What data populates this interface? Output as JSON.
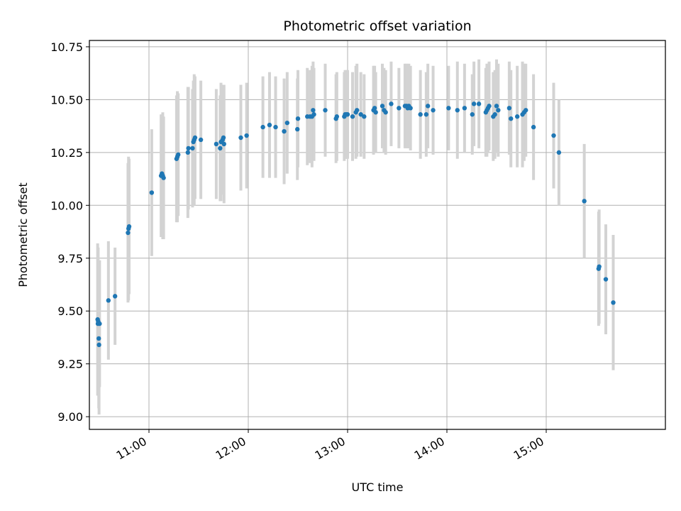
{
  "chart_data": {
    "type": "scatter",
    "title": "Photometric offset variation",
    "xlabel": "UTC time",
    "ylabel": "Photometric offset",
    "x_format": "HH:MM",
    "xlim": [
      "10:24",
      "16:12"
    ],
    "ylim": [
      8.94,
      10.78
    ],
    "x_ticks": [
      "11:00",
      "12:00",
      "13:00",
      "14:00",
      "15:00"
    ],
    "y_ticks": [
      9.0,
      9.25,
      9.5,
      9.75,
      10.0,
      10.25,
      10.5,
      10.75
    ],
    "y_tick_labels": [
      "9.00",
      "9.25",
      "9.50",
      "9.75",
      "10.00",
      "10.25",
      "10.50",
      "10.75"
    ],
    "grid": true,
    "colors": {
      "point": "#1f77b4",
      "errorbar": "#d3d3d3",
      "grid": "#b0b0b0"
    },
    "points": [
      {
        "x": "10:29:00",
        "y": 9.46,
        "err": 0.36
      },
      {
        "x": "10:29:10",
        "y": 9.44,
        "err": 0.34
      },
      {
        "x": "10:29:20",
        "y": 9.45,
        "err": 0.35
      },
      {
        "x": "10:29:40",
        "y": 9.37,
        "err": 0.33
      },
      {
        "x": "10:29:50",
        "y": 9.34,
        "err": 0.33
      },
      {
        "x": "10:30:10",
        "y": 9.44,
        "err": 0.3
      },
      {
        "x": "10:35:30",
        "y": 9.55,
        "err": 0.28
      },
      {
        "x": "10:39:30",
        "y": 9.57,
        "err": 0.23
      },
      {
        "x": "10:47:20",
        "y": 9.87,
        "err": 0.33
      },
      {
        "x": "10:47:40",
        "y": 9.89,
        "err": 0.34
      },
      {
        "x": "10:48:00",
        "y": 9.9,
        "err": 0.32
      },
      {
        "x": "11:01:40",
        "y": 10.06,
        "err": 0.3
      },
      {
        "x": "11:07:20",
        "y": 10.14,
        "err": 0.29
      },
      {
        "x": "11:07:50",
        "y": 10.15,
        "err": 0.28
      },
      {
        "x": "11:08:20",
        "y": 10.14,
        "err": 0.3
      },
      {
        "x": "11:08:50",
        "y": 10.13,
        "err": 0.29
      },
      {
        "x": "11:16:40",
        "y": 10.22,
        "err": 0.3
      },
      {
        "x": "11:17:10",
        "y": 10.23,
        "err": 0.31
      },
      {
        "x": "11:17:40",
        "y": 10.24,
        "err": 0.29
      },
      {
        "x": "11:23:30",
        "y": 10.25,
        "err": 0.31
      },
      {
        "x": "11:23:50",
        "y": 10.27,
        "err": 0.29
      },
      {
        "x": "11:26:20",
        "y": 10.27,
        "err": 0.28
      },
      {
        "x": "11:26:50",
        "y": 10.3,
        "err": 0.29
      },
      {
        "x": "11:27:20",
        "y": 10.31,
        "err": 0.31
      },
      {
        "x": "11:27:50",
        "y": 10.32,
        "err": 0.29
      },
      {
        "x": "11:31:20",
        "y": 10.31,
        "err": 0.28
      },
      {
        "x": "11:40:40",
        "y": 10.29,
        "err": 0.26
      },
      {
        "x": "11:43:00",
        "y": 10.27,
        "err": 0.25
      },
      {
        "x": "11:43:30",
        "y": 10.3,
        "err": 0.28
      },
      {
        "x": "11:44:30",
        "y": 10.31,
        "err": 0.26
      },
      {
        "x": "11:45:00",
        "y": 10.32,
        "err": 0.25
      },
      {
        "x": "11:45:20",
        "y": 10.29,
        "err": 0.28
      },
      {
        "x": "11:55:30",
        "y": 10.32,
        "err": 0.25
      },
      {
        "x": "11:59:00",
        "y": 10.33,
        "err": 0.25
      },
      {
        "x": "12:08:50",
        "y": 10.37,
        "err": 0.24
      },
      {
        "x": "12:12:50",
        "y": 10.38,
        "err": 0.25
      },
      {
        "x": "12:16:30",
        "y": 10.37,
        "err": 0.24
      },
      {
        "x": "12:21:40",
        "y": 10.35,
        "err": 0.25
      },
      {
        "x": "12:23:30",
        "y": 10.39,
        "err": 0.24
      },
      {
        "x": "12:29:40",
        "y": 10.36,
        "err": 0.24
      },
      {
        "x": "12:30:00",
        "y": 10.41,
        "err": 0.23
      },
      {
        "x": "12:35:40",
        "y": 10.42,
        "err": 0.23
      },
      {
        "x": "12:37:20",
        "y": 10.42,
        "err": 0.22
      },
      {
        "x": "12:38:30",
        "y": 10.42,
        "err": 0.24
      },
      {
        "x": "12:39:10",
        "y": 10.45,
        "err": 0.23
      },
      {
        "x": "12:39:40",
        "y": 10.43,
        "err": 0.22
      },
      {
        "x": "12:46:30",
        "y": 10.45,
        "err": 0.22
      },
      {
        "x": "12:53:00",
        "y": 10.41,
        "err": 0.21
      },
      {
        "x": "12:53:30",
        "y": 10.42,
        "err": 0.21
      },
      {
        "x": "12:58:00",
        "y": 10.42,
        "err": 0.21
      },
      {
        "x": "12:58:30",
        "y": 10.43,
        "err": 0.21
      },
      {
        "x": "12:59:20",
        "y": 10.43,
        "err": 0.21
      },
      {
        "x": "13:00:00",
        "y": 10.43,
        "err": 0.21
      },
      {
        "x": "13:03:00",
        "y": 10.42,
        "err": 0.21
      },
      {
        "x": "13:05:00",
        "y": 10.44,
        "err": 0.22
      },
      {
        "x": "13:05:40",
        "y": 10.45,
        "err": 0.22
      },
      {
        "x": "13:08:00",
        "y": 10.43,
        "err": 0.2
      },
      {
        "x": "13:10:00",
        "y": 10.42,
        "err": 0.2
      },
      {
        "x": "13:15:40",
        "y": 10.45,
        "err": 0.21
      },
      {
        "x": "13:16:20",
        "y": 10.46,
        "err": 0.2
      },
      {
        "x": "13:17:00",
        "y": 10.44,
        "err": 0.19
      },
      {
        "x": "13:21:00",
        "y": 10.47,
        "err": 0.2
      },
      {
        "x": "13:22:00",
        "y": 10.45,
        "err": 0.2
      },
      {
        "x": "13:23:00",
        "y": 10.44,
        "err": 0.2
      },
      {
        "x": "13:26:20",
        "y": 10.48,
        "err": 0.2
      },
      {
        "x": "13:31:00",
        "y": 10.46,
        "err": 0.19
      },
      {
        "x": "13:34:40",
        "y": 10.47,
        "err": 0.2
      },
      {
        "x": "13:35:40",
        "y": 10.47,
        "err": 0.2
      },
      {
        "x": "13:36:20",
        "y": 10.46,
        "err": 0.19
      },
      {
        "x": "13:37:00",
        "y": 10.47,
        "err": 0.2
      },
      {
        "x": "13:38:00",
        "y": 10.46,
        "err": 0.2
      },
      {
        "x": "13:44:00",
        "y": 10.43,
        "err": 0.21
      },
      {
        "x": "13:47:30",
        "y": 10.43,
        "err": 0.2
      },
      {
        "x": "13:48:30",
        "y": 10.47,
        "err": 0.2
      },
      {
        "x": "13:51:40",
        "y": 10.45,
        "err": 0.21
      },
      {
        "x": "14:01:00",
        "y": 10.46,
        "err": 0.2
      },
      {
        "x": "14:06:20",
        "y": 10.45,
        "err": 0.23
      },
      {
        "x": "14:10:40",
        "y": 10.46,
        "err": 0.21
      },
      {
        "x": "14:15:20",
        "y": 10.43,
        "err": 0.19
      },
      {
        "x": "14:16:20",
        "y": 10.48,
        "err": 0.2
      },
      {
        "x": "14:19:20",
        "y": 10.48,
        "err": 0.21
      },
      {
        "x": "14:23:30",
        "y": 10.44,
        "err": 0.21
      },
      {
        "x": "14:24:10",
        "y": 10.45,
        "err": 0.22
      },
      {
        "x": "14:24:50",
        "y": 10.46,
        "err": 0.21
      },
      {
        "x": "14:25:30",
        "y": 10.47,
        "err": 0.21
      },
      {
        "x": "14:28:00",
        "y": 10.42,
        "err": 0.21
      },
      {
        "x": "14:29:00",
        "y": 10.43,
        "err": 0.21
      },
      {
        "x": "14:30:00",
        "y": 10.47,
        "err": 0.22
      },
      {
        "x": "14:31:00",
        "y": 10.45,
        "err": 0.22
      },
      {
        "x": "14:37:40",
        "y": 10.46,
        "err": 0.22
      },
      {
        "x": "14:38:40",
        "y": 10.41,
        "err": 0.23
      },
      {
        "x": "14:42:30",
        "y": 10.42,
        "err": 0.24
      },
      {
        "x": "14:45:40",
        "y": 10.43,
        "err": 0.25
      },
      {
        "x": "14:46:40",
        "y": 10.44,
        "err": 0.23
      },
      {
        "x": "14:47:40",
        "y": 10.45,
        "err": 0.22
      },
      {
        "x": "14:52:20",
        "y": 10.37,
        "err": 0.25
      },
      {
        "x": "15:04:30",
        "y": 10.33,
        "err": 0.25
      },
      {
        "x": "15:07:40",
        "y": 10.25,
        "err": 0.25
      },
      {
        "x": "15:23:00",
        "y": 10.02,
        "err": 0.27
      },
      {
        "x": "15:31:40",
        "y": 9.7,
        "err": 0.27
      },
      {
        "x": "15:32:00",
        "y": 9.71,
        "err": 0.27
      },
      {
        "x": "15:36:00",
        "y": 9.65,
        "err": 0.26
      },
      {
        "x": "15:40:30",
        "y": 9.54,
        "err": 0.32
      }
    ]
  }
}
